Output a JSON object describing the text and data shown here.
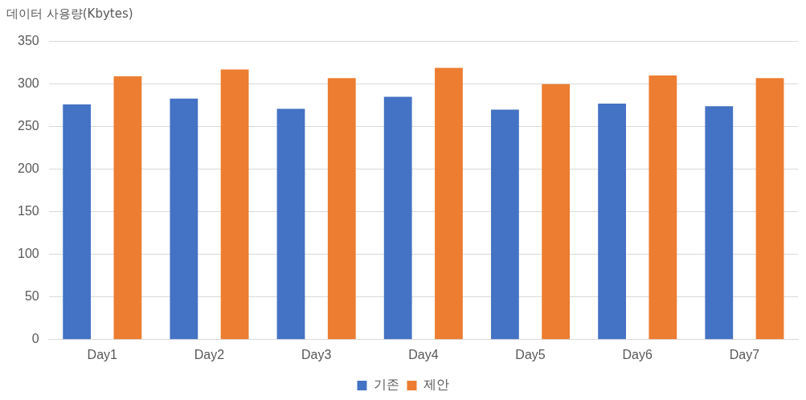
{
  "chart_data": {
    "type": "bar",
    "ylabel": "데이터 사용량(Kbytes)",
    "categories": [
      "Day1",
      "Day2",
      "Day3",
      "Day4",
      "Day5",
      "Day6",
      "Day7"
    ],
    "series": [
      {
        "name": "기존",
        "color": "#4472c4",
        "values": [
          276,
          283,
          271,
          285,
          270,
          277,
          274
        ]
      },
      {
        "name": "제안",
        "color": "#ed7d31",
        "values": [
          309,
          317,
          307,
          319,
          300,
          310,
          307
        ]
      }
    ],
    "ylim": [
      0,
      350
    ],
    "yticks": [
      0,
      50,
      100,
      150,
      200,
      250,
      300,
      350
    ],
    "grid": "y",
    "legend": "bottom"
  }
}
